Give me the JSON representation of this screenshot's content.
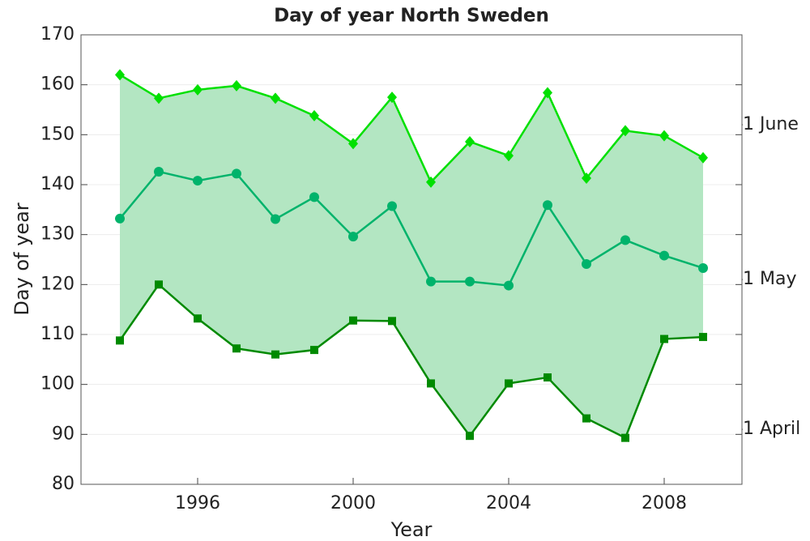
{
  "chart_data": {
    "type": "line",
    "title": "Day of year North Sweden",
    "xlabel": "Year",
    "ylabel": "Day of year",
    "x": [
      1994,
      1995,
      1996,
      1997,
      1998,
      1999,
      2000,
      2001,
      2002,
      2003,
      2004,
      2005,
      2006,
      2007,
      2008,
      2009
    ],
    "series": [
      {
        "color": "#00e000",
        "marker": "diamond",
        "values": [
          162,
          157.3,
          159,
          159.8,
          157.3,
          153.8,
          148.2,
          157.5,
          140.5,
          148.6,
          145.8,
          158.4,
          141.3,
          150.8,
          149.8,
          145.4
        ]
      },
      {
        "color": "#00b36b",
        "marker": "circle",
        "values": [
          133.2,
          142.6,
          140.8,
          142.2,
          133.1,
          137.5,
          129.6,
          135.7,
          120.6,
          120.6,
          119.8,
          135.9,
          124.1,
          128.9,
          125.8,
          123.3
        ]
      },
      {
        "color": "#008a00",
        "marker": "square",
        "values": [
          108.8,
          120,
          113.2,
          107.2,
          106,
          106.9,
          112.8,
          112.7,
          100.2,
          89.7,
          100.2,
          101.4,
          93.2,
          89.3,
          109.1,
          109.5
        ]
      }
    ],
    "fill_between": {
      "series": [
        0,
        2
      ],
      "color": "#b3e6c2"
    },
    "xlim": [
      1993,
      2010
    ],
    "xticks": [
      1996,
      2000,
      2004,
      2008
    ],
    "ylim": [
      80,
      170
    ],
    "yticks": [
      80,
      90,
      100,
      110,
      120,
      130,
      140,
      150,
      160,
      170
    ],
    "y2lim": [
      80,
      170
    ],
    "y2ticks": [
      {
        "value": 152,
        "label": "1 June"
      },
      {
        "value": 121,
        "label": "1 May"
      },
      {
        "value": 91,
        "label": "1 April"
      }
    ],
    "grid": true
  }
}
